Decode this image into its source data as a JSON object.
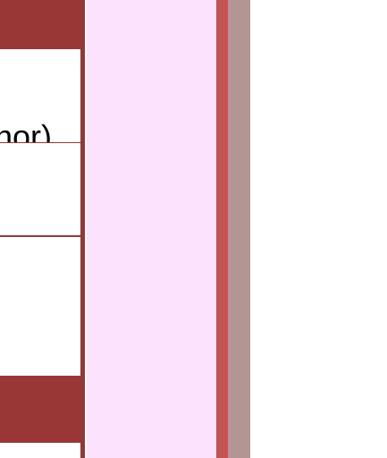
{
  "table": {
    "rows": [
      {
        "text": "nor)"
      },
      {
        "text": ""
      },
      {
        "text": ""
      },
      {
        "text": ""
      }
    ]
  },
  "colors": {
    "header": "#983736",
    "border": "#8e3a3a",
    "pink_panel": "#fde2fe",
    "scroll_track": "#c45353",
    "scroll_shadow": "#b29595"
  }
}
